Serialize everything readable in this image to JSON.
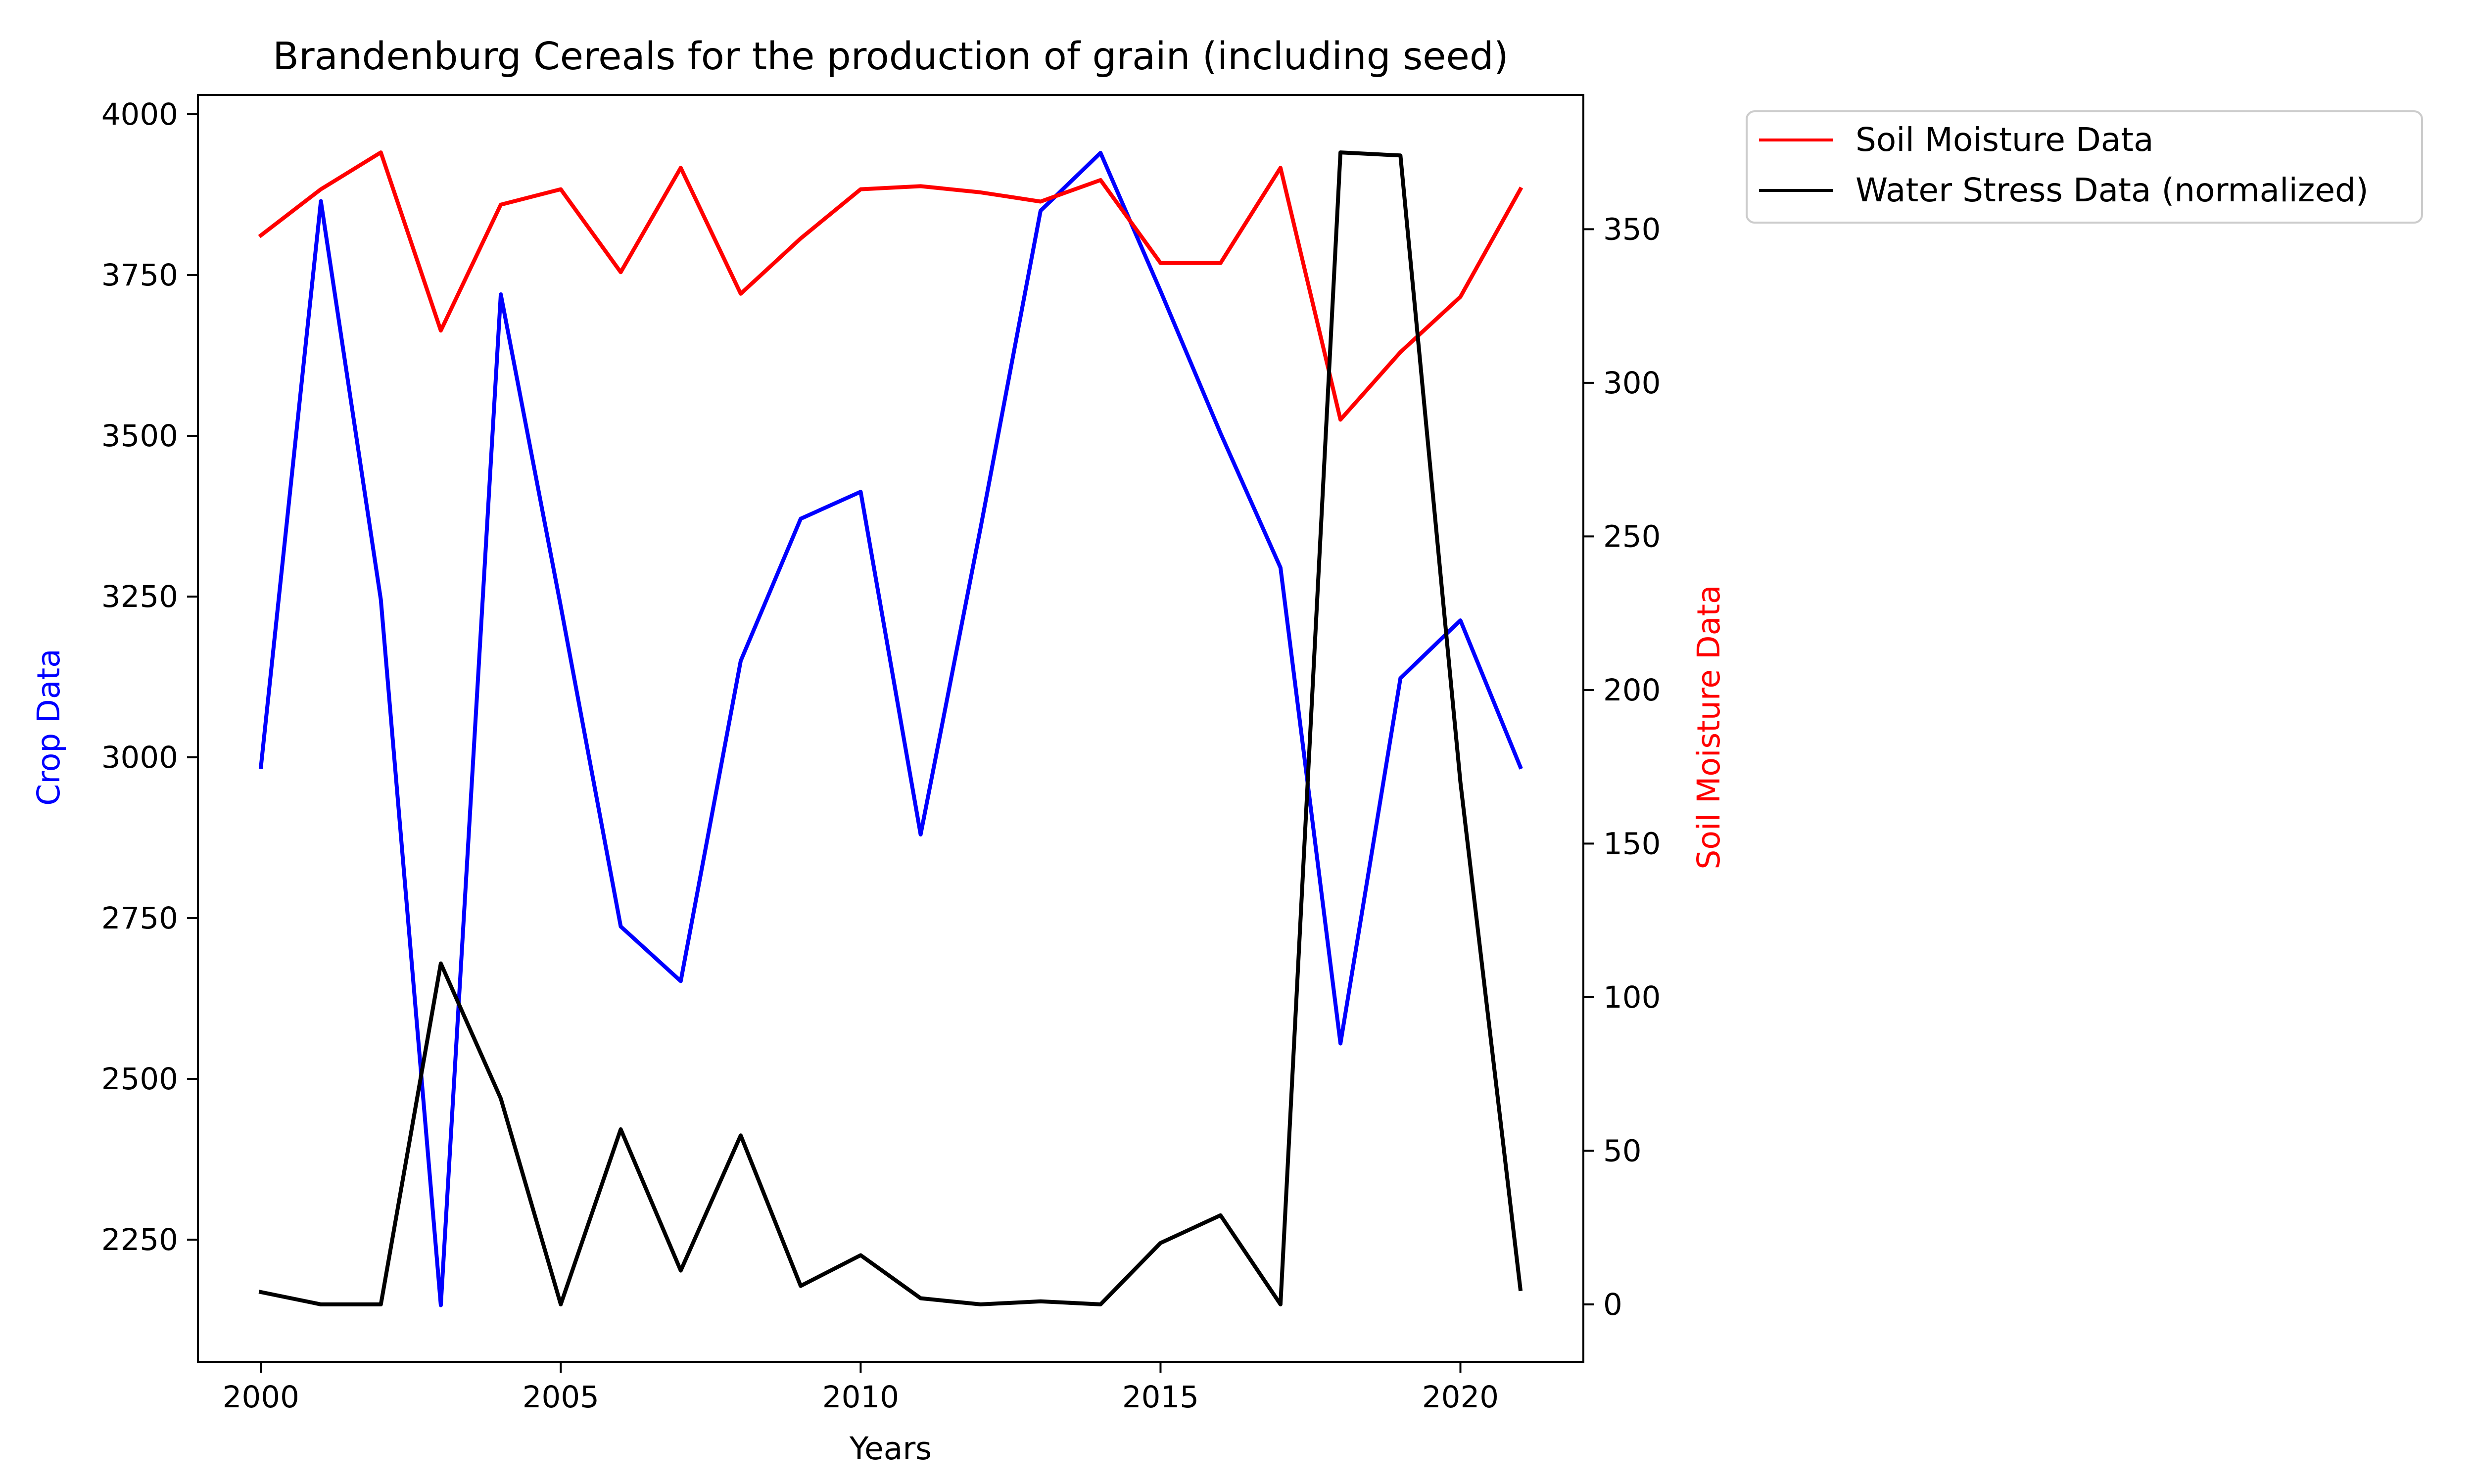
{
  "chart_data": {
    "type": "line",
    "title": "Brandenburg Cereals for the production of grain (including seed)",
    "xlabel": "Years",
    "ylabel_left": "Crop Data",
    "ylabel_right": "Soil Moisture Data",
    "x": [
      2000,
      2001,
      2002,
      2003,
      2004,
      2005,
      2006,
      2007,
      2008,
      2009,
      2010,
      2011,
      2012,
      2013,
      2014,
      2015,
      2016,
      2017,
      2018,
      2019,
      2020,
      2021
    ],
    "xlim": [
      1998.95,
      2022.05
    ],
    "xticks": [
      2000,
      2005,
      2010,
      2015,
      2020
    ],
    "ylim_left": [
      2060,
      4030
    ],
    "yticks_left": [
      2250,
      2500,
      2750,
      3000,
      3250,
      3500,
      3750,
      4000
    ],
    "ylim_right": [
      -18.7,
      393.7
    ],
    "yticks_right": [
      0,
      50,
      100,
      150,
      200,
      250,
      300,
      350
    ],
    "grid": false,
    "legend_position": "outside-right",
    "series": [
      {
        "name": "",
        "axis": "left",
        "color": "#0000ff",
        "values": [
          2985,
          3865,
          3245,
          2148,
          3720,
          3235,
          2737,
          2652,
          3150,
          3371,
          3413,
          2880,
          3357,
          3850,
          3940,
          3725,
          3504,
          3295,
          2555,
          3123,
          3213,
          2985
        ]
      },
      {
        "name": "Soil Moisture Data",
        "axis": "right",
        "color": "#ff0000",
        "values": [
          348,
          363,
          375,
          317,
          358,
          363,
          336,
          370,
          329,
          347,
          363,
          364,
          362,
          359,
          366,
          339,
          339,
          370,
          288,
          310,
          328,
          363
        ]
      },
      {
        "name": "Water Stress Data (normalized)",
        "axis": "right",
        "color": "#000000",
        "values": [
          4,
          0,
          0,
          111,
          67,
          0,
          57,
          11,
          55,
          6,
          16,
          2,
          0,
          1,
          0,
          20,
          29,
          0,
          375,
          374,
          170,
          5
        ]
      }
    ],
    "legend": [
      "Soil Moisture Data",
      "Water Stress Data (normalized)"
    ],
    "colors": {
      "left_axis_label": "#0000ff",
      "right_axis_label": "#ff0000"
    }
  }
}
